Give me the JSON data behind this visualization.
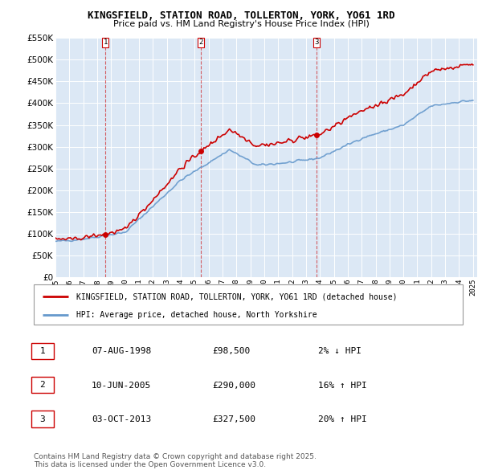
{
  "title_line1": "KINGSFIELD, STATION ROAD, TOLLERTON, YORK, YO61 1RD",
  "title_line2": "Price paid vs. HM Land Registry's House Price Index (HPI)",
  "x_start_year": 1995,
  "x_end_year": 2025,
  "y_min": 0,
  "y_max": 550000,
  "y_ticks": [
    0,
    50000,
    100000,
    150000,
    200000,
    250000,
    300000,
    350000,
    400000,
    450000,
    500000,
    550000
  ],
  "sale_dates_num": [
    1998.6,
    2005.44,
    2013.75
  ],
  "sale_prices": [
    98500,
    290000,
    327500
  ],
  "sale_labels": [
    "1",
    "2",
    "3"
  ],
  "table_data": [
    [
      "1",
      "07-AUG-1998",
      "£98,500",
      "2% ↓ HPI"
    ],
    [
      "2",
      "10-JUN-2005",
      "£290,000",
      "16% ↑ HPI"
    ],
    [
      "3",
      "03-OCT-2013",
      "£327,500",
      "20% ↑ HPI"
    ]
  ],
  "legend_line1": "KINGSFIELD, STATION ROAD, TOLLERTON, YORK, YO61 1RD (detached house)",
  "legend_line2": "HPI: Average price, detached house, North Yorkshire",
  "footer": "Contains HM Land Registry data © Crown copyright and database right 2025.\nThis data is licensed under the Open Government Licence v3.0.",
  "red_color": "#cc0000",
  "blue_color": "#6699cc",
  "plot_bg": "#dce8f5"
}
